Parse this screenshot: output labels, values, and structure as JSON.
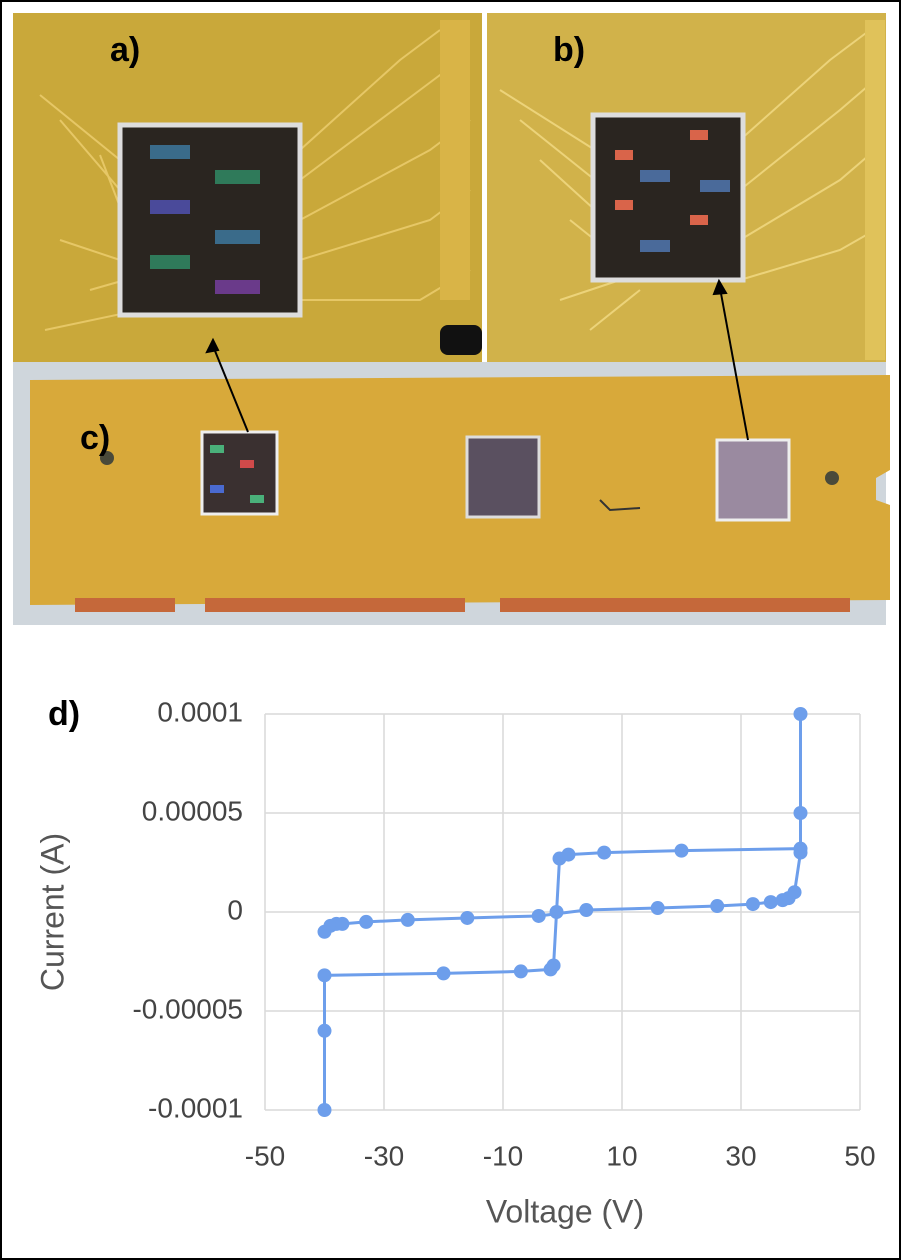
{
  "panels": {
    "a": "a)",
    "b": "b)",
    "c": "c)"
  },
  "chart_data": {
    "type": "line",
    "panel_label": "d)",
    "x_label": "Voltage (V)",
    "y_label": "Current (A)",
    "xlim": [
      -50,
      50
    ],
    "xticks": [
      -50,
      -30,
      -10,
      10,
      30,
      50
    ],
    "ylim": [
      -0.0001,
      0.0001
    ],
    "yticks": [
      -0.0001,
      -5e-05,
      0,
      5e-05,
      0.0001
    ],
    "grid": true,
    "series": [
      {
        "color": "#6d9eeb",
        "x": [
          40,
          40,
          40,
          20,
          7,
          1,
          -0.5,
          -1,
          -1.5,
          -2,
          -7,
          -20,
          -40,
          -40,
          -40
        ],
        "values": [
          0.0001,
          5e-05,
          3.2e-05,
          3.1e-05,
          3e-05,
          2.9e-05,
          2.7e-05,
          0,
          -2.7e-05,
          -2.9e-05,
          -3e-05,
          -3.1e-05,
          -3.2e-05,
          -6e-05,
          -0.0001
        ]
      },
      {
        "color": "#6d9eeb",
        "x": [
          -40,
          -39,
          -38,
          -37,
          -33,
          -26,
          -16,
          -4,
          4,
          16,
          26,
          32,
          35,
          37,
          38,
          39,
          40
        ],
        "values": [
          -1e-05,
          -7e-06,
          -6e-06,
          -6e-06,
          -5e-06,
          -4e-06,
          -3e-06,
          -2e-06,
          1e-06,
          2e-06,
          3e-06,
          4e-06,
          5e-06,
          6e-06,
          7e-06,
          1e-05,
          3e-05
        ]
      }
    ]
  }
}
